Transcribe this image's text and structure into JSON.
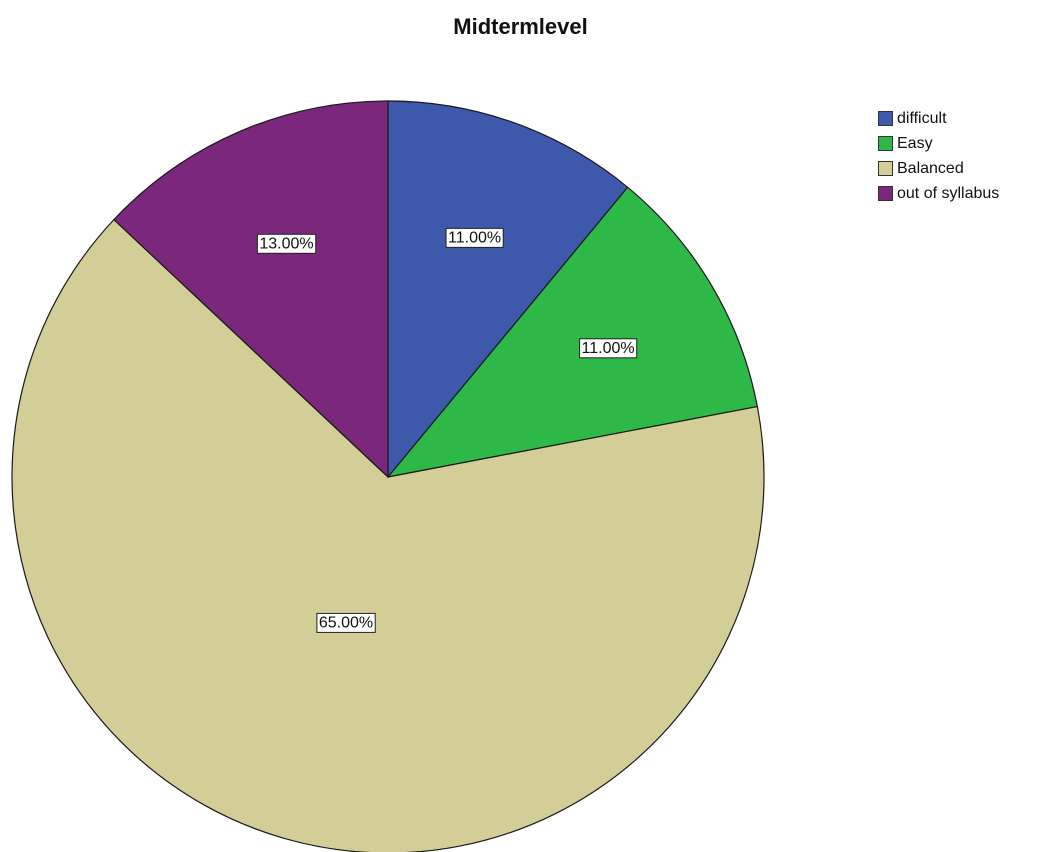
{
  "chart_data": {
    "type": "pie",
    "title": "Midtermlevel",
    "start_angle_deg": 0,
    "direction": "clockwise",
    "slices": [
      {
        "label": "difficult",
        "value": 11.0,
        "display": "11.00%",
        "color": "#3e58ac"
      },
      {
        "label": "Easy",
        "value": 11.0,
        "display": "11.00%",
        "color": "#2eb848"
      },
      {
        "label": "Balanced",
        "value": 65.0,
        "display": "65.00%",
        "color": "#d3ce97"
      },
      {
        "label": "out of syllabus",
        "value": 13.0,
        "display": "13.00%",
        "color": "#7b277c"
      }
    ],
    "legend_position": "top-right"
  }
}
